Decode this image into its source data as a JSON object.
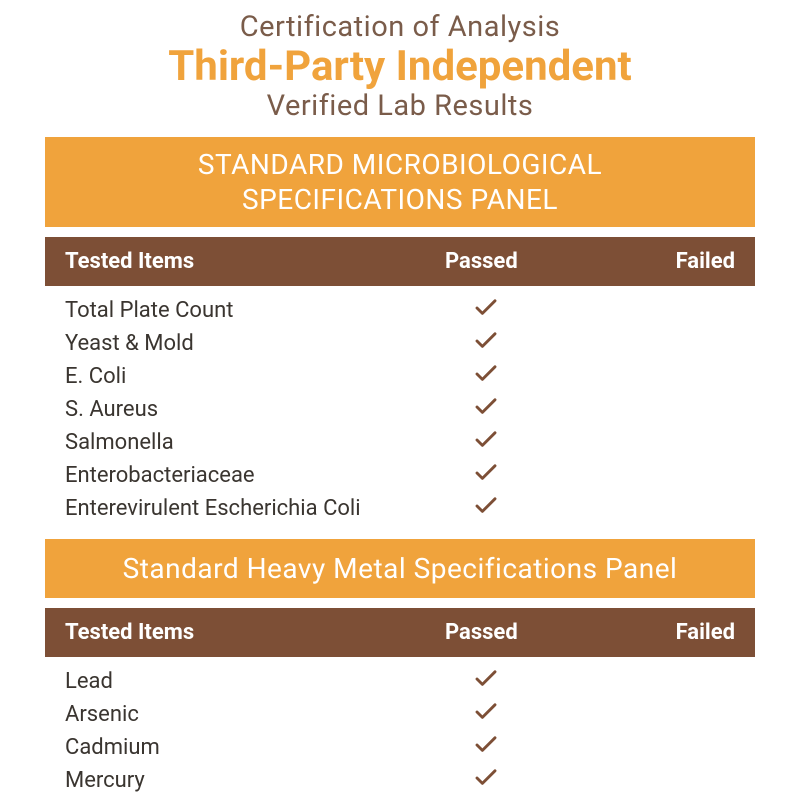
{
  "header": {
    "line1": "Certification of Analysis",
    "line2": "Third-Party Independent",
    "line3": "Verified Lab Results"
  },
  "colors": {
    "accent_orange": "#f0a33c",
    "brown_dark": "#7d4f36",
    "text_muted": "#7a5c4a",
    "text_body": "#3a3530",
    "check_color": "#7d4f36",
    "background": "#ffffff"
  },
  "columns": {
    "item": "Tested Items",
    "passed": "Passed",
    "failed": "Failed"
  },
  "panels": [
    {
      "title": "STANDARD MICROBIOLOGICAL SPECIFICATIONS PANEL",
      "rows": [
        {
          "item": "Total Plate Count",
          "passed": true,
          "failed": false
        },
        {
          "item": "Yeast & Mold",
          "passed": true,
          "failed": false
        },
        {
          "item": "E. Coli",
          "passed": true,
          "failed": false
        },
        {
          "item": "S. Aureus",
          "passed": true,
          "failed": false
        },
        {
          "item": "Salmonella",
          "passed": true,
          "failed": false
        },
        {
          "item": "Enterobacteriaceae",
          "passed": true,
          "failed": false
        },
        {
          "item": "Enterevirulent Escherichia Coli",
          "passed": true,
          "failed": false
        }
      ]
    },
    {
      "title": "Standard Heavy Metal Specifications Panel",
      "rows": [
        {
          "item": "Lead",
          "passed": true,
          "failed": false
        },
        {
          "item": "Arsenic",
          "passed": true,
          "failed": false
        },
        {
          "item": "Cadmium",
          "passed": true,
          "failed": false
        },
        {
          "item": "Mercury",
          "passed": true,
          "failed": false
        }
      ]
    }
  ]
}
